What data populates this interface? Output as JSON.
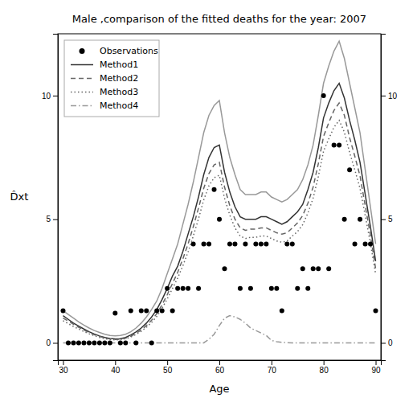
{
  "chart_data": {
    "type": "line",
    "title": "Male ,comparison of the fitted deaths for the year: 2007",
    "xlabel": "Age",
    "ylabel": "D̂xt",
    "xlim": [
      29,
      91
    ],
    "ylim": [
      -0.7,
      12.5
    ],
    "xticks": [
      30,
      40,
      50,
      60,
      70,
      80,
      90
    ],
    "yticks": [
      0,
      5,
      10
    ],
    "y2lim": [
      -0.7,
      12.5
    ],
    "y2ticks": [
      0,
      5,
      10
    ],
    "grid": false,
    "legend": "upper left",
    "x": [
      30,
      31,
      32,
      33,
      34,
      35,
      36,
      37,
      38,
      39,
      40,
      41,
      42,
      43,
      44,
      45,
      46,
      47,
      48,
      49,
      50,
      51,
      52,
      53,
      54,
      55,
      56,
      57,
      58,
      59,
      60,
      61,
      62,
      63,
      64,
      65,
      66,
      67,
      68,
      69,
      70,
      71,
      72,
      73,
      74,
      75,
      76,
      77,
      78,
      79,
      80,
      81,
      82,
      83,
      84,
      85,
      86,
      87,
      88,
      89,
      90
    ],
    "series": [
      {
        "name": "Observations",
        "type": "scatter",
        "color": "#000000",
        "marker": "circle",
        "values": [
          1.3,
          0.0,
          0.0,
          0.0,
          0.0,
          0.0,
          0.0,
          0.0,
          0.0,
          0.0,
          1.2,
          0.0,
          0.0,
          1.3,
          0.0,
          1.3,
          1.3,
          0.0,
          1.3,
          1.3,
          2.2,
          1.3,
          2.2,
          2.2,
          2.2,
          4.0,
          2.2,
          4.0,
          4.0,
          6.2,
          5.0,
          3.0,
          4.0,
          4.0,
          2.2,
          4.0,
          2.2,
          4.0,
          4.0,
          4.0,
          2.2,
          2.2,
          1.3,
          4.0,
          4.0,
          2.2,
          3.0,
          2.2,
          3.0,
          3.0,
          10.0,
          3.0,
          8.0,
          8.0,
          5.0,
          7.0,
          4.0,
          5.0,
          4.0,
          4.0,
          1.3
        ]
      },
      {
        "name": "Method1",
        "type": "line",
        "color": "#333333",
        "line_style": "solid",
        "values": [
          1.1,
          0.95,
          0.8,
          0.68,
          0.56,
          0.45,
          0.36,
          0.28,
          0.22,
          0.18,
          0.16,
          0.17,
          0.22,
          0.32,
          0.44,
          0.6,
          0.8,
          1.05,
          1.35,
          1.75,
          2.2,
          2.7,
          3.1,
          3.7,
          4.4,
          5.1,
          5.9,
          6.8,
          7.5,
          7.9,
          8.0,
          6.9,
          6.1,
          5.5,
          5.1,
          5.0,
          5.0,
          5.0,
          5.1,
          5.1,
          5.0,
          4.9,
          4.8,
          4.9,
          5.1,
          5.3,
          5.6,
          6.2,
          6.9,
          7.9,
          9.1,
          9.7,
          10.2,
          10.5,
          9.9,
          9.0,
          8.2,
          7.3,
          6.0,
          4.7,
          3.3
        ]
      },
      {
        "name": "Method2",
        "type": "line",
        "color": "#666666",
        "line_style": "dashed",
        "values": [
          1.0,
          0.88,
          0.75,
          0.63,
          0.52,
          0.42,
          0.33,
          0.26,
          0.2,
          0.16,
          0.14,
          0.15,
          0.19,
          0.27,
          0.38,
          0.52,
          0.7,
          0.92,
          1.18,
          1.54,
          1.95,
          2.4,
          2.85,
          3.4,
          4.0,
          4.7,
          5.45,
          6.25,
          6.85,
          7.2,
          7.3,
          6.3,
          5.55,
          5.0,
          4.65,
          4.55,
          4.6,
          4.6,
          4.65,
          4.65,
          4.55,
          4.45,
          4.4,
          4.45,
          4.65,
          4.85,
          5.15,
          5.65,
          6.3,
          7.25,
          8.35,
          8.9,
          9.4,
          9.7,
          9.2,
          8.3,
          7.55,
          6.75,
          5.55,
          4.35,
          3.0
        ]
      },
      {
        "name": "Method3",
        "type": "line",
        "color": "#666666",
        "line_style": "dotted",
        "values": [
          0.9,
          0.78,
          0.66,
          0.56,
          0.46,
          0.37,
          0.29,
          0.22,
          0.17,
          0.14,
          0.12,
          0.13,
          0.17,
          0.24,
          0.34,
          0.47,
          0.63,
          0.83,
          1.07,
          1.4,
          1.78,
          2.2,
          2.62,
          3.12,
          3.68,
          4.32,
          5.02,
          5.78,
          6.35,
          6.68,
          6.78,
          5.85,
          5.17,
          4.65,
          4.32,
          4.22,
          4.27,
          4.27,
          4.32,
          4.32,
          4.22,
          4.12,
          4.07,
          4.12,
          4.32,
          4.5,
          4.78,
          5.25,
          5.85,
          6.73,
          7.75,
          8.25,
          8.72,
          9.0,
          8.52,
          7.7,
          7.0,
          6.25,
          5.15,
          4.03,
          2.78
        ]
      },
      {
        "name": "Method4",
        "type": "line",
        "color": "#999999",
        "line_style": "dashdot",
        "values": [
          0.0,
          0.0,
          0.0,
          0.0,
          0.0,
          0.0,
          0.0,
          0.0,
          0.0,
          0.0,
          0.0,
          0.0,
          0.0,
          0.0,
          0.0,
          0.0,
          0.0,
          0.0,
          0.0,
          0.0,
          0.0,
          0.0,
          0.0,
          0.0,
          0.0,
          0.0,
          0.0,
          0.0,
          0.15,
          0.35,
          0.7,
          1.0,
          1.1,
          1.05,
          0.95,
          0.8,
          0.6,
          0.5,
          0.4,
          0.3,
          0.1,
          0.05,
          0.02,
          0.01,
          0.0,
          0.0,
          0.0,
          0.0,
          0.0,
          0.0,
          0.0,
          0.0,
          0.0,
          0.0,
          0.0,
          0.0,
          0.0,
          0.0,
          0.0,
          0.0,
          0.0
        ]
      },
      {
        "type": "line",
        "color": "#999999",
        "line_style": "solid",
        "values": [
          1.3,
          1.15,
          1.0,
          0.85,
          0.72,
          0.6,
          0.5,
          0.42,
          0.35,
          0.3,
          0.28,
          0.3,
          0.35,
          0.45,
          0.6,
          0.8,
          1.05,
          1.35,
          1.7,
          2.2,
          2.8,
          3.4,
          4.0,
          4.8,
          5.6,
          6.5,
          7.5,
          8.5,
          9.2,
          9.6,
          9.8,
          8.5,
          7.5,
          6.8,
          6.2,
          6.0,
          6.0,
          6.0,
          6.1,
          6.1,
          5.9,
          5.8,
          5.7,
          5.8,
          6.0,
          6.2,
          6.6,
          7.2,
          8.0,
          9.2,
          10.5,
          11.2,
          11.8,
          12.2,
          11.5,
          10.5,
          9.5,
          8.5,
          7.0,
          5.5,
          4.0
        ]
      }
    ]
  }
}
